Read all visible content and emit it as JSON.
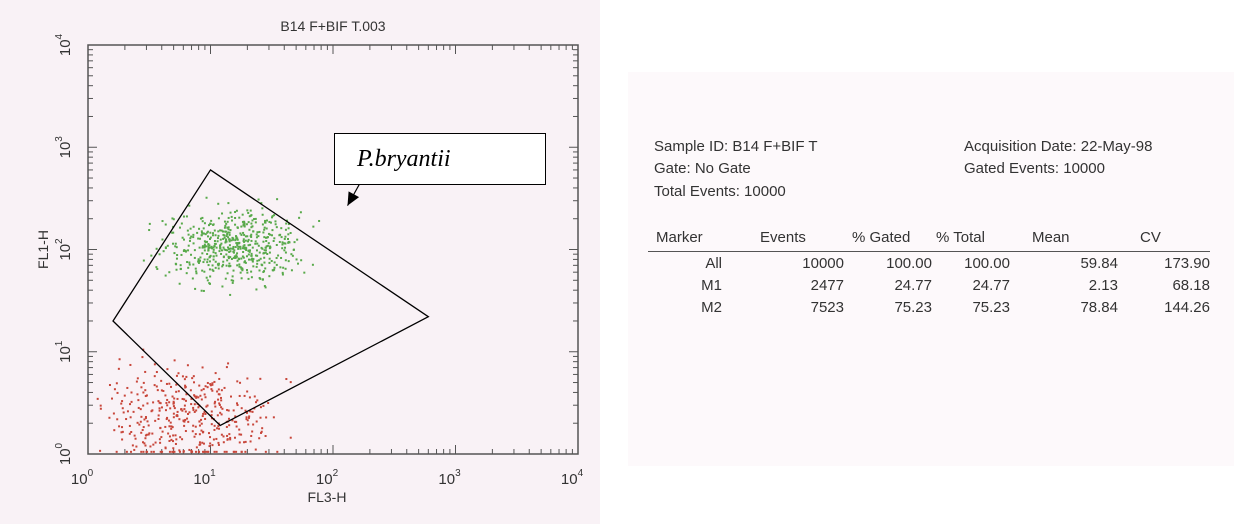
{
  "chart_data": {
    "type": "scatter",
    "title": "B14 F+BIF T.003",
    "xlabel": "FL3-H",
    "ylabel": "FL1-H",
    "xscale": "log",
    "yscale": "log",
    "xlim": [
      1,
      10000
    ],
    "ylim": [
      1,
      10000
    ],
    "x_ticks": [
      {
        "base": "10",
        "exp": "0"
      },
      {
        "base": "10",
        "exp": "1"
      },
      {
        "base": "10",
        "exp": "2"
      },
      {
        "base": "10",
        "exp": "3"
      },
      {
        "base": "10",
        "exp": "4"
      }
    ],
    "y_ticks": [
      {
        "base": "10",
        "exp": "0"
      },
      {
        "base": "10",
        "exp": "1"
      },
      {
        "base": "10",
        "exp": "2"
      },
      {
        "base": "10",
        "exp": "3"
      },
      {
        "base": "10",
        "exp": "4"
      }
    ],
    "series": [
      {
        "color": "#58a94a",
        "cluster": {
          "x_center": 15,
          "y_center": 110,
          "x_spread_decades": 0.26,
          "y_spread_decades": 0.17,
          "point_count": 560
        }
      },
      {
        "color": "#c8463a",
        "cluster": {
          "x_center": 7,
          "y_center": 2.3,
          "x_spread_decades": 0.33,
          "y_spread_decades": 0.24,
          "point_count": 420
        }
      }
    ],
    "gate_polygon": [
      [
        10,
        600
      ],
      [
        1.6,
        20
      ],
      [
        12,
        1.9
      ],
      [
        600,
        22
      ]
    ],
    "annotation": {
      "text": "P.bryantii",
      "arrow_to": [
        16,
        240
      ]
    }
  },
  "stats": {
    "sample_id": "Sample ID: B14 F+BIF T",
    "acquisition_date": "Acquisition Date: 22-May-98",
    "gate": "Gate: No Gate",
    "gated_events": "Gated Events: 10000",
    "total_events": "Total Events: 10000",
    "columns": [
      "Marker",
      "Events",
      "% Gated",
      "% Total",
      "Mean",
      "CV"
    ],
    "rows": [
      [
        "All",
        "10000",
        "100.00",
        "100.00",
        "59.84",
        "173.90"
      ],
      [
        "M1",
        "2477",
        "24.77",
        "24.77",
        "2.13",
        "68.18"
      ],
      [
        "M2",
        "7523",
        "75.23",
        "75.23",
        "78.84",
        "144.26"
      ]
    ]
  }
}
